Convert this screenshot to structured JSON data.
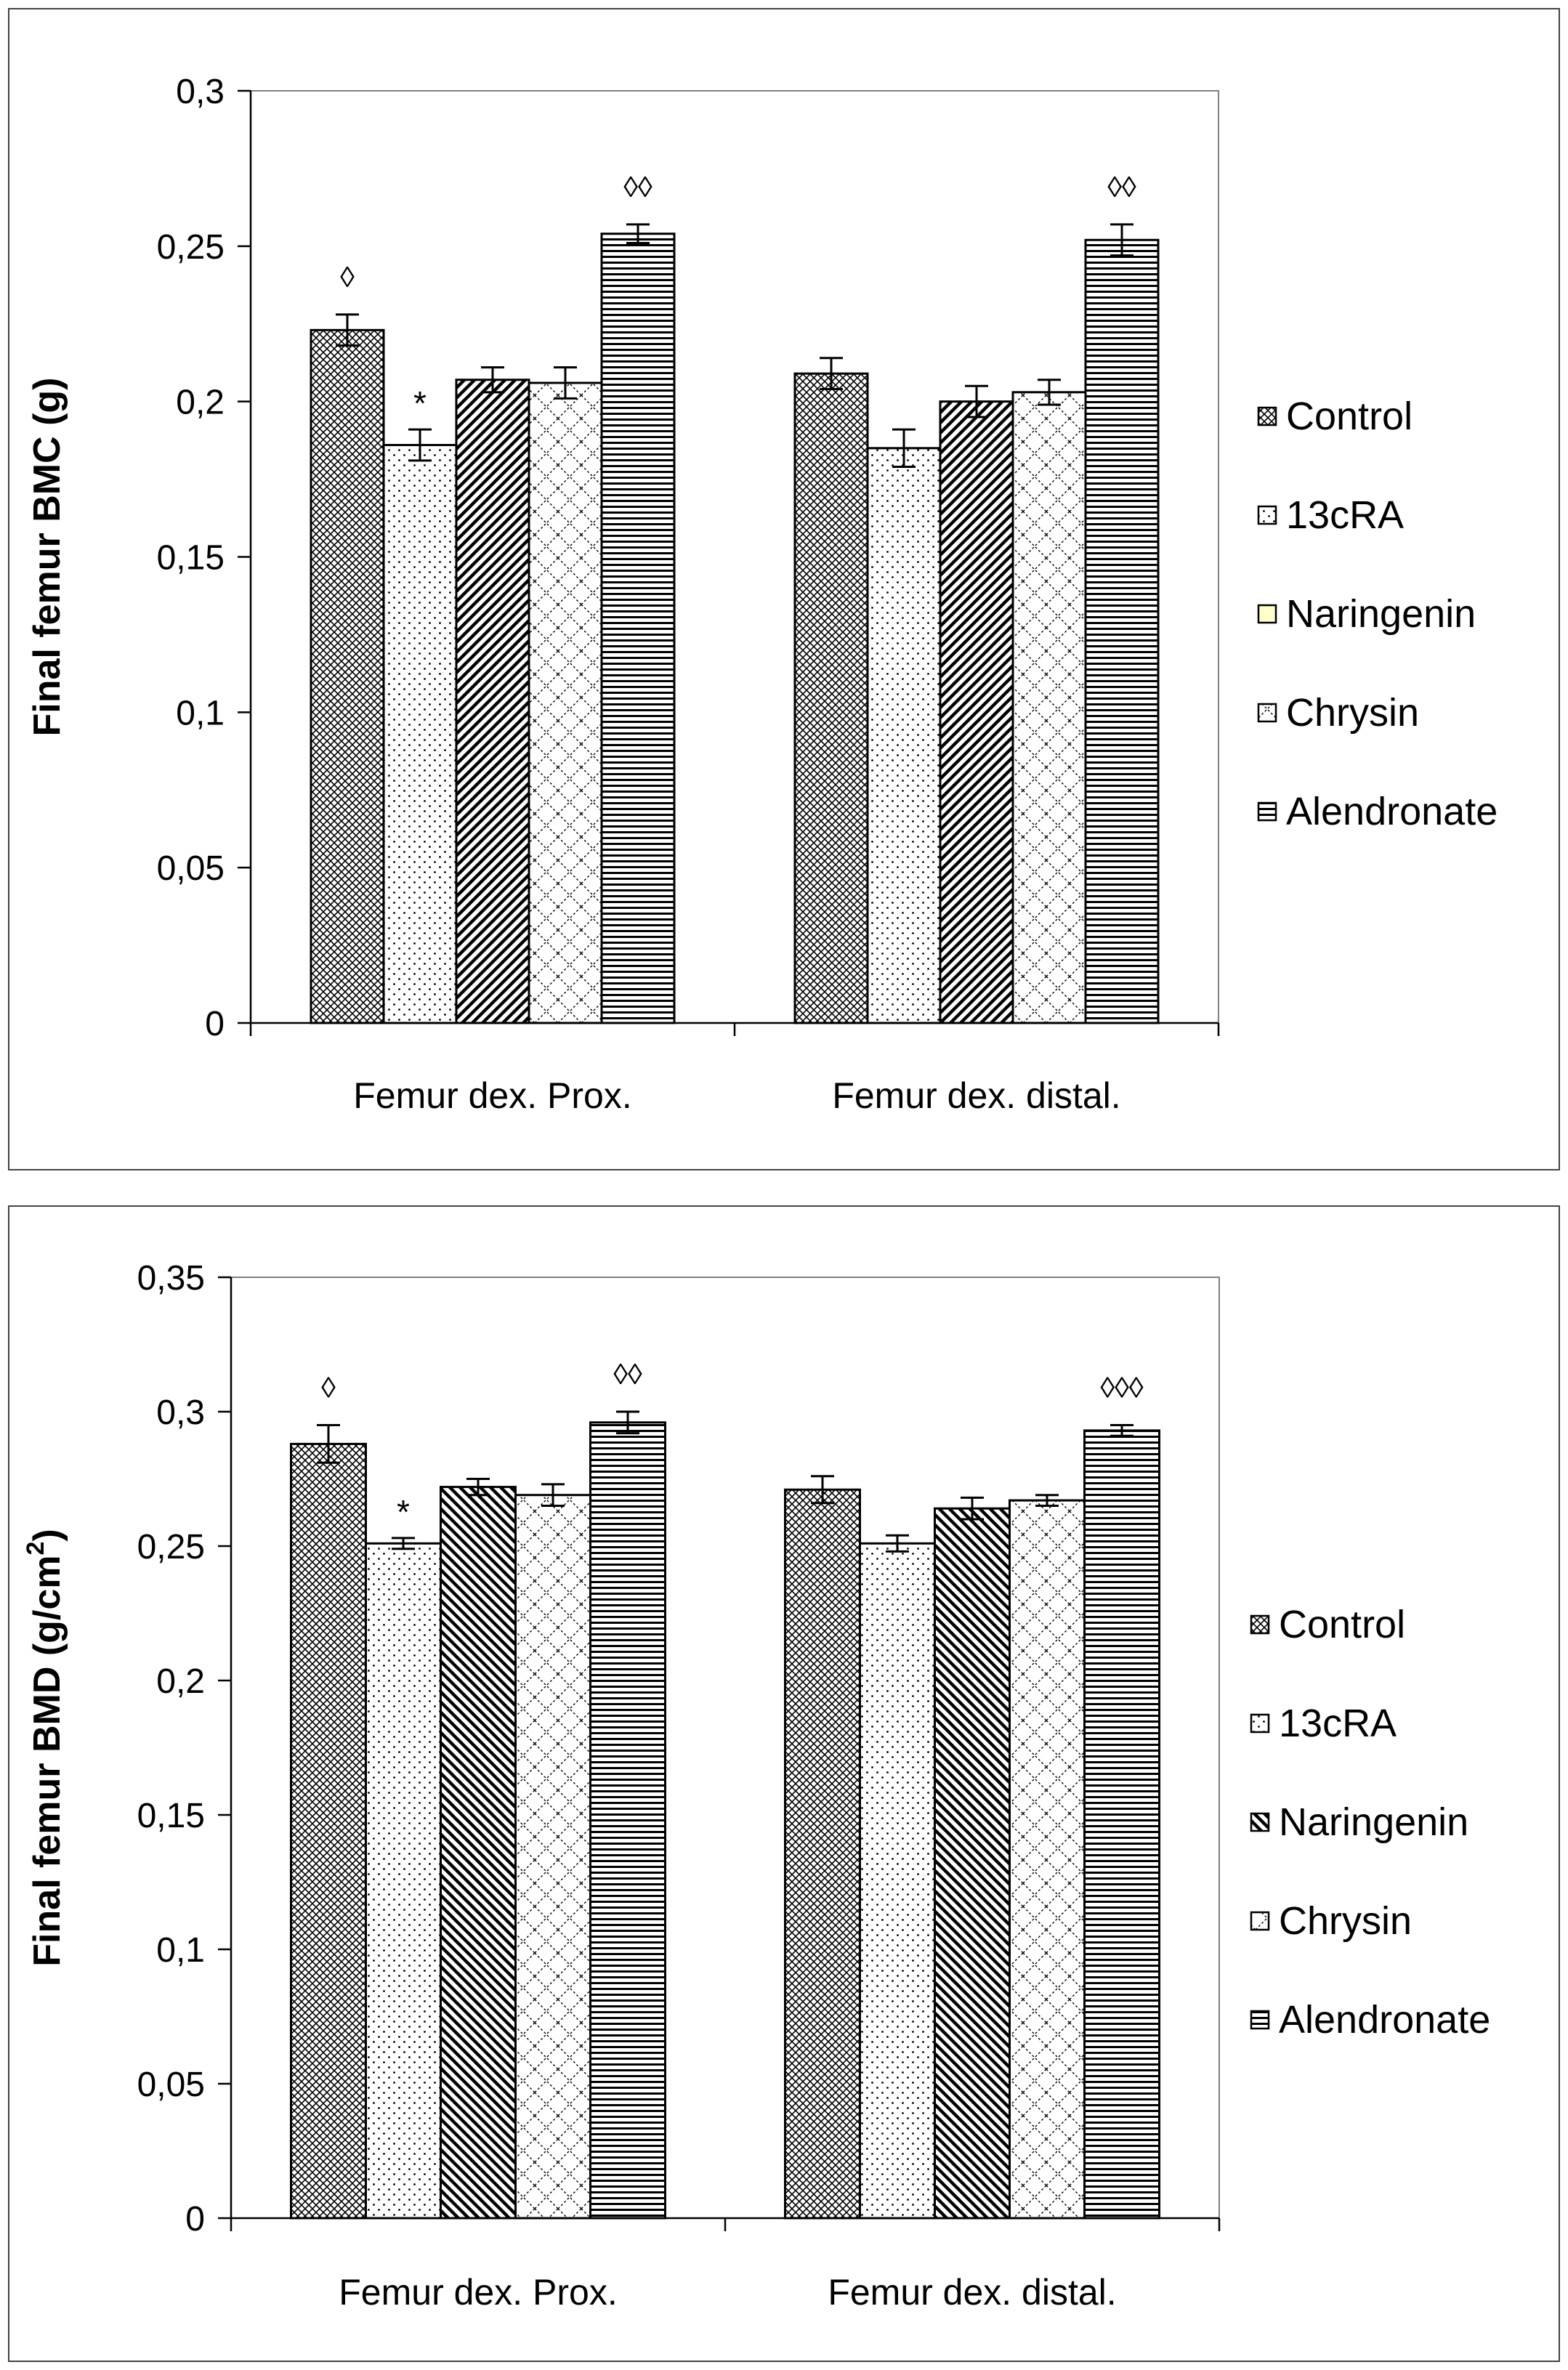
{
  "chart_data": [
    {
      "type": "bar",
      "ylabel": "Final femur BMC (g)",
      "ylabel_superscript": "",
      "ylabel_tail": "",
      "ylim": [
        0,
        0.3
      ],
      "yticks": [
        0,
        0.05,
        0.1,
        0.15,
        0.2,
        0.25,
        0.3
      ],
      "ytick_labels": [
        "0",
        "0,05",
        "0,1",
        "0,15",
        "0,2",
        "0,25",
        "0,3"
      ],
      "categories": [
        "Femur dex. Prox.",
        "Femur dex. distal."
      ],
      "legend_position": "right",
      "series": [
        {
          "name": "Control",
          "values": [
            0.223,
            0.209
          ],
          "errors": [
            0.005,
            0.005
          ],
          "annotations": [
            "◊",
            ""
          ]
        },
        {
          "name": "13cRA",
          "values": [
            0.186,
            0.185
          ],
          "errors": [
            0.005,
            0.006
          ],
          "annotations": [
            "*",
            ""
          ]
        },
        {
          "name": "Naringenin",
          "values": [
            0.207,
            0.2
          ],
          "errors": [
            0.004,
            0.005
          ],
          "annotations": [
            "",
            ""
          ]
        },
        {
          "name": "Chrysin",
          "values": [
            0.206,
            0.203
          ],
          "errors": [
            0.005,
            0.004
          ],
          "annotations": [
            "",
            ""
          ]
        },
        {
          "name": "Alendronate",
          "values": [
            0.254,
            0.252
          ],
          "errors": [
            0.003,
            0.005
          ],
          "annotations": [
            "◊◊",
            "◊◊"
          ]
        }
      ]
    },
    {
      "type": "bar",
      "ylabel": "Final femur BMD (g/cm",
      "ylabel_superscript": "2",
      "ylabel_tail": ")",
      "ylim": [
        0,
        0.35
      ],
      "yticks": [
        0,
        0.05,
        0.1,
        0.15,
        0.2,
        0.25,
        0.3,
        0.35
      ],
      "ytick_labels": [
        "0",
        "0,05",
        "0,1",
        "0,15",
        "0,2",
        "0,25",
        "0,3",
        "0,35"
      ],
      "categories": [
        "Femur dex. Prox.",
        "Femur dex. distal."
      ],
      "legend_position": "right",
      "series": [
        {
          "name": "Control",
          "values": [
            0.288,
            0.271
          ],
          "errors": [
            0.007,
            0.005
          ],
          "annotations": [
            "◊",
            ""
          ]
        },
        {
          "name": "13cRA",
          "values": [
            0.251,
            0.251
          ],
          "errors": [
            0.002,
            0.003
          ],
          "annotations": [
            "*",
            ""
          ]
        },
        {
          "name": "Naringenin",
          "values": [
            0.272,
            0.264
          ],
          "errors": [
            0.003,
            0.004
          ],
          "annotations": [
            "",
            ""
          ]
        },
        {
          "name": "Chrysin",
          "values": [
            0.269,
            0.267
          ],
          "errors": [
            0.004,
            0.002
          ],
          "annotations": [
            "",
            ""
          ]
        },
        {
          "name": "Alendronate",
          "values": [
            0.296,
            0.293
          ],
          "errors": [
            0.004,
            0.002
          ],
          "annotations": [
            "◊◊",
            "◊◊◊"
          ]
        }
      ]
    }
  ]
}
